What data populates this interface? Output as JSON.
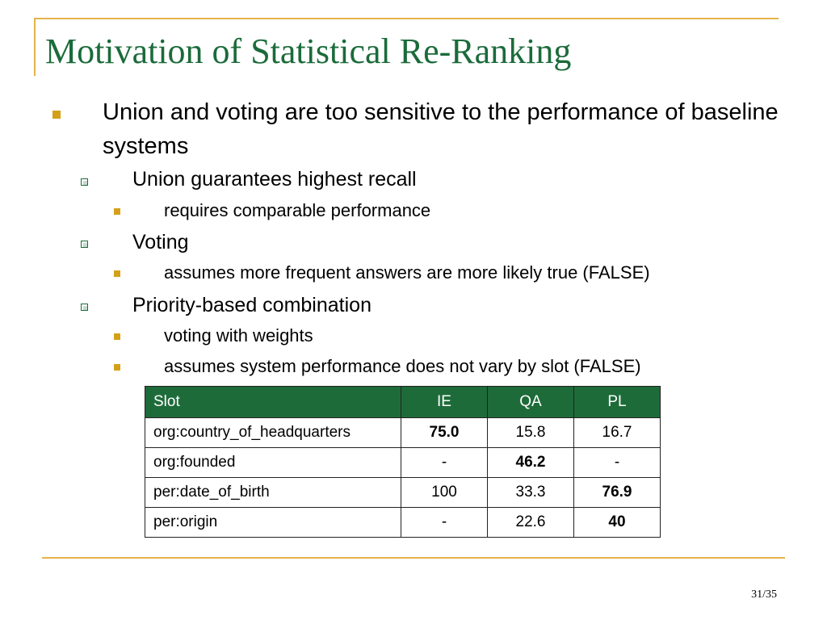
{
  "slide": {
    "title": "Motivation of Statistical Re-Ranking",
    "bullet": "Union and voting are too sensitive to the performance of baseline systems",
    "subitems": [
      {
        "text": "Union guarantees highest recall",
        "details": [
          "requires comparable performance"
        ]
      },
      {
        "text": "Voting",
        "details": [
          "assumes more frequent answers are more likely true (FALSE)"
        ]
      },
      {
        "text": "Priority-based combination",
        "details": [
          "voting with weights",
          "assumes system performance does not vary by slot (FALSE)"
        ]
      }
    ],
    "page_number": "31/35"
  },
  "table": {
    "headers": [
      "Slot",
      "IE",
      "QA",
      "PL"
    ],
    "rows": [
      {
        "cells": [
          "org:country_of_headquarters",
          "75.0",
          "15.8",
          "16.7"
        ],
        "bold": 1
      },
      {
        "cells": [
          "org:founded",
          "-",
          "46.2",
          "-"
        ],
        "bold": 2
      },
      {
        "cells": [
          "per:date_of_birth",
          "100",
          "33.3",
          "76.9"
        ],
        "bold": 3
      },
      {
        "cells": [
          "per:origin",
          "-",
          "22.6",
          "40"
        ],
        "bold": 3
      }
    ]
  },
  "colors": {
    "title": "#1b6b3a",
    "accent": "#e3b34a",
    "table_header": "#1e6b3a"
  }
}
